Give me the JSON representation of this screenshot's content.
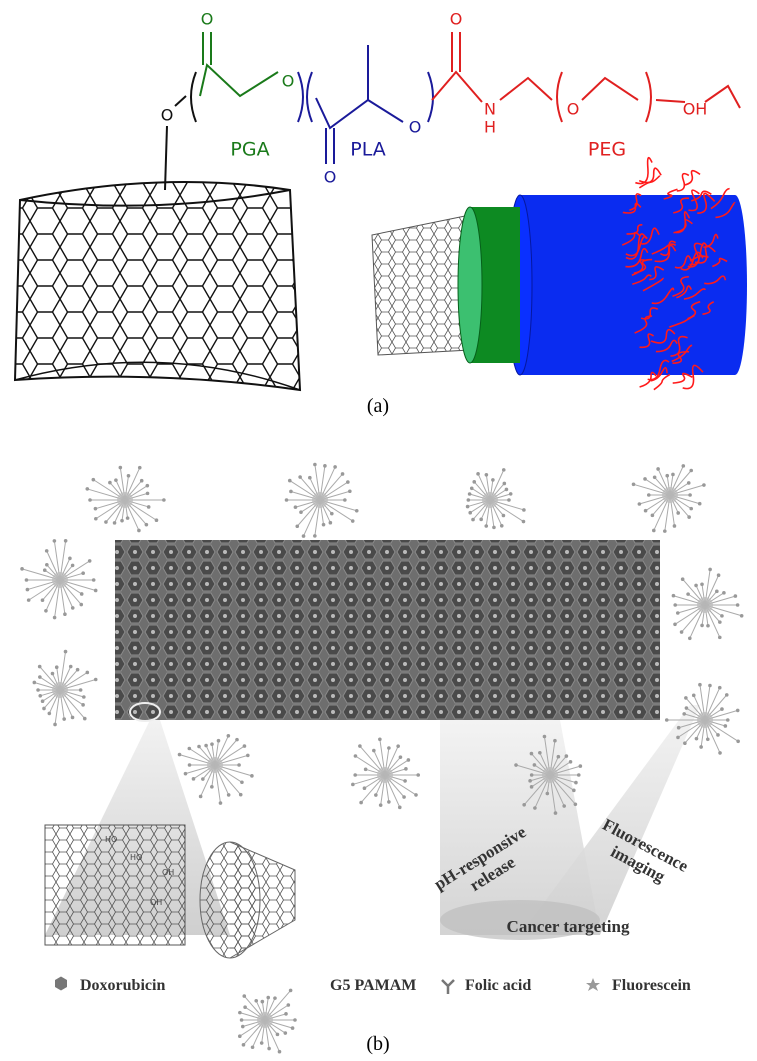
{
  "panel_a": {
    "atoms": {
      "o_link": "O",
      "o_pga_carbonyl": "O",
      "o_pga_ester": "O",
      "o_pla_carbonyl": "O",
      "o_pla_ester": "O",
      "o_peg_carbonyl": "O",
      "n": "N",
      "h": "H",
      "o_peg_repeat": "O",
      "terminal": "OH"
    },
    "blocks": {
      "pga": "PGA",
      "pla": "PLA",
      "peg": "PEG"
    },
    "label": "(a)"
  },
  "panel_b": {
    "conditions": {
      "ph": [
        "pH-responsive",
        "release"
      ],
      "fluorescence": [
        "Fluorescence",
        "imaging"
      ],
      "targeting": "Cancer targeting"
    },
    "hydroxyls": [
      "HO",
      "HO",
      "OH",
      "OH"
    ],
    "legend": {
      "doxorubicin": "Doxorubicin",
      "pamam": "G5 PAMAM",
      "folic_acid": "Folic acid",
      "fluorescein": "Fluorescein"
    },
    "label": "(b)"
  }
}
